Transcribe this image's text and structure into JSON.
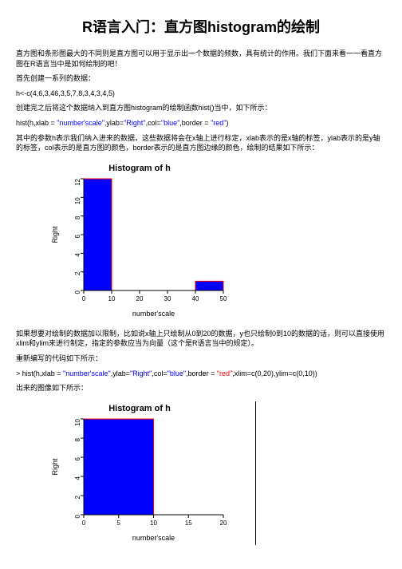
{
  "title": "R语言入门：直方图histogram的绘制",
  "p1": "直方图和条形图最大的不同则是直方图可以用于显示出一个数据的频数，具有统计的作用。我们下面来看一一看直方图在R语言当中是如何绘制的吧！",
  "p2": "首先创建一系列的数据：",
  "code1": "h<-c(4,6,3,46,3,5,7,8,3,4,3,4,5)",
  "p3": "创建完之后将这个数据纳入到直方图histogram的绘制函数hist()当中，如下所示：",
  "code2_prefix": "hist(h,xlab = ",
  "code2_q1": "\"number'scale\"",
  "code2_mid1": ",ylab=",
  "code2_q2": "\"Right\"",
  "code2_mid2": ",col=",
  "code2_q3": "\"blue\"",
  "code2_mid3": ",border = ",
  "code2_q4": "\"red\"",
  "code2_suffix": ")",
  "p4": "其中的参数h表示我们纳入进来的数据，这些数据将会在x轴上进行标定，xlab表示的是x轴的标签，ylab表示的是y轴的标签，col表示的是直方图的颜色，border表示的是直方图边缘的颜色，绘制的结果如下所示：",
  "chart1": {
    "title": "Histogram of h",
    "xlabel": "number'scale",
    "ylabel": "Right",
    "fill": "#0000ff",
    "border": "#ff0000",
    "x_ticks": [
      "0",
      "10",
      "20",
      "30",
      "40",
      "50"
    ],
    "y_ticks": [
      "0",
      "2",
      "4",
      "6",
      "8",
      "10",
      "12"
    ],
    "bars": [
      {
        "x0": 0,
        "x1": 10,
        "h": 12
      },
      {
        "x0": 40,
        "x1": 50,
        "h": 1
      }
    ],
    "xmax": 50,
    "ymax": 12
  },
  "p5": "如果想要对绘制的数据加以限制，比如说x轴上只绘制从0到20的数据，y也只绘制0到10的数据的话，则可以直接使用xlim和ylim来进行制定，指定的参数应当为向量（这个是R语言当中的规定）。",
  "p6": "重新编写的代码如下所示：",
  "code3_prefix": "> hist(h,xlab = ",
  "code3_q1": "\"number'scale\"",
  "code3_m1": ",ylab=",
  "code3_q2": "\"Right\"",
  "code3_m2": ",col=",
  "code3_q3": "\"blue\"",
  "code3_m3": ",border = ",
  "code3_q4": "\"red\"",
  "code3_m4": ",xlim=c(0,20),ylim=c(0,10))",
  "p7": "出来的图像如下所示：",
  "chart2": {
    "title": "Histogram of h",
    "xlabel": "number'scale",
    "ylabel": "Right",
    "fill": "#0000ff",
    "border": "#ff0000",
    "x_ticks": [
      "0",
      "5",
      "10",
      "15",
      "20"
    ],
    "y_ticks": [
      "0",
      "2",
      "4",
      "6",
      "8",
      "10"
    ],
    "bars": [
      {
        "x0": 0,
        "x1": 10,
        "h": 10
      }
    ],
    "xmax": 20,
    "ymax": 10
  }
}
